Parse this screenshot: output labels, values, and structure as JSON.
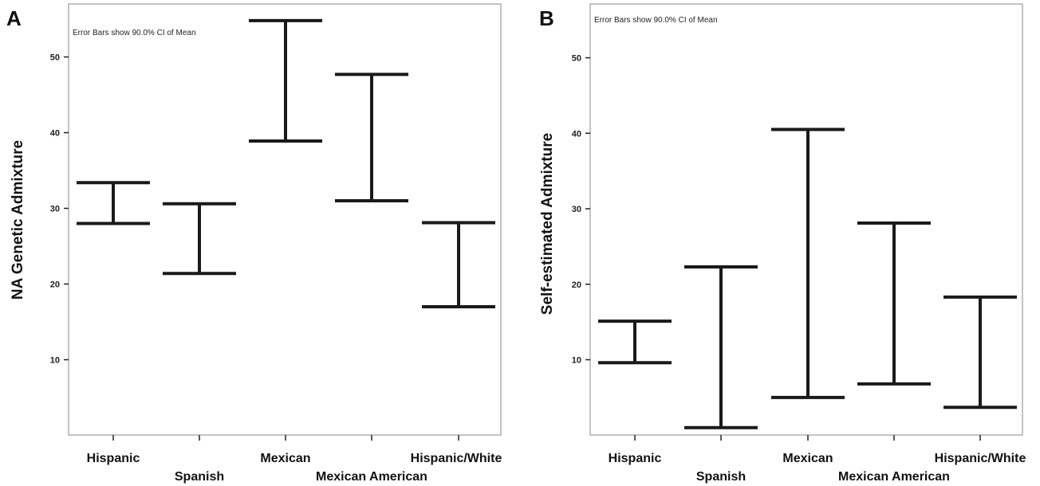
{
  "chart_data": [
    {
      "type": "errorbar",
      "panel_label": "A",
      "annotation": "Error Bars show 90.0% CI of Mean",
      "ylabel": "NA Genetic Admixture",
      "xlabel": "",
      "yticks": [
        10,
        20,
        30,
        40,
        50
      ],
      "ylim": [
        0,
        57
      ],
      "categories": [
        "Hispanic",
        "Spanish",
        "Mexican",
        "Mexican American",
        "Hispanic/White"
      ],
      "lower": [
        28.0,
        21.4,
        38.9,
        31.0,
        17.0
      ],
      "upper": [
        33.4,
        30.6,
        54.8,
        47.7,
        28.1
      ]
    },
    {
      "type": "errorbar",
      "panel_label": "B",
      "annotation": "Error Bars show 90.0% CI of Mean",
      "ylabel": "Self-estimated Admixture",
      "xlabel": "",
      "yticks": [
        10,
        20,
        30,
        40,
        50
      ],
      "ylim": [
        0,
        57
      ],
      "categories": [
        "Hispanic",
        "Spanish",
        "Mexican",
        "Mexican American",
        "Hispanic/White"
      ],
      "lower": [
        9.6,
        1.0,
        5.0,
        6.8,
        3.7
      ],
      "upper": [
        15.1,
        22.3,
        40.5,
        28.1,
        18.3
      ]
    }
  ]
}
